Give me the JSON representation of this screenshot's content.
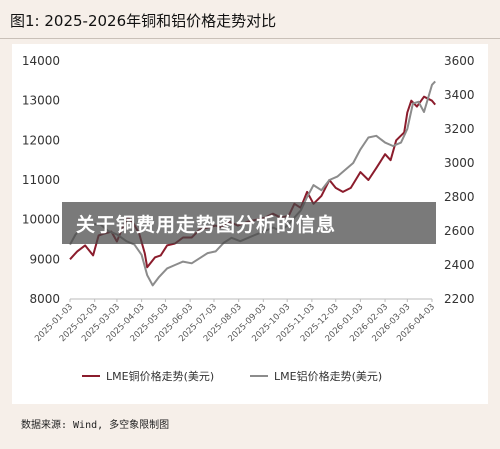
{
  "title": "图1: 2025-2026年铜和铝价格走势对比",
  "overlay_text": "关于铜费用走势图分析的信息",
  "source": "数据来源: Wind, 多空象限制图",
  "colors": {
    "copper": "#8b1c2c",
    "aluminium": "#8c8c8c",
    "background": "#f6efe9"
  },
  "chart_data": {
    "type": "line",
    "y_left": {
      "ticks": [
        8000,
        9000,
        10000,
        11000,
        12000,
        13000,
        14000
      ],
      "lim": [
        8000,
        14000
      ]
    },
    "y_right": {
      "ticks": [
        2200,
        2400,
        2600,
        2800,
        3000,
        3200,
        3400,
        3600
      ],
      "lim": [
        2200,
        3600
      ]
    },
    "x_ticks": [
      "2025-01-03",
      "2025-02-03",
      "2025-03-03",
      "2025-04-03",
      "2025-05-03",
      "2025-06-03",
      "2025-07-03",
      "2025-08-03",
      "2025-09-03",
      "2025-10-03",
      "2025-11-03",
      "2025-12-03",
      "2026-01-03",
      "2026-02-03",
      "2026-03-03",
      "2026-04-03"
    ],
    "grid": false,
    "legend_position": "bottom",
    "series": [
      {
        "name": "LME铜价格走势(美元)",
        "axis": "left",
        "color": "#8b1c2c",
        "x": [
          "2025-01-03",
          "2025-01-12",
          "2025-01-22",
          "2025-02-01",
          "2025-02-08",
          "2025-02-15",
          "2025-02-24",
          "2025-03-03",
          "2025-03-10",
          "2025-03-17",
          "2025-03-24",
          "2025-03-31",
          "2025-04-07",
          "2025-04-10",
          "2025-04-20",
          "2025-04-27",
          "2025-05-05",
          "2025-05-15",
          "2025-05-25",
          "2025-06-05",
          "2025-06-15",
          "2025-06-25",
          "2025-07-05",
          "2025-07-12",
          "2025-07-22",
          "2025-08-02",
          "2025-08-15",
          "2025-08-25",
          "2025-09-05",
          "2025-09-15",
          "2025-09-25",
          "2025-10-05",
          "2025-10-12",
          "2025-10-20",
          "2025-10-28",
          "2025-11-05",
          "2025-11-15",
          "2025-11-25",
          "2025-12-03",
          "2025-12-12",
          "2025-12-22",
          "2026-01-03",
          "2026-01-13",
          "2026-01-23",
          "2026-02-03",
          "2026-02-10",
          "2026-02-17",
          "2026-02-27",
          "2026-03-03",
          "2026-03-08",
          "2026-03-15",
          "2026-03-24",
          "2026-04-03",
          "2026-04-07"
        ],
        "values": [
          9000,
          9200,
          9350,
          9100,
          9600,
          9650,
          9700,
          9450,
          9800,
          10050,
          9900,
          9650,
          9150,
          8800,
          9050,
          9100,
          9350,
          9400,
          9550,
          9550,
          9750,
          9800,
          9850,
          9800,
          9950,
          9850,
          9950,
          10000,
          10050,
          10150,
          10050,
          10100,
          10400,
          10300,
          10700,
          10400,
          10600,
          11000,
          10800,
          10700,
          10800,
          11200,
          11000,
          11300,
          11650,
          11500,
          12000,
          12200,
          12700,
          13000,
          12850,
          13100,
          13000,
          12900
        ]
      },
      {
        "name": "LME铝价格走势(美元)",
        "axis": "right",
        "color": "#8c8c8c",
        "x": [
          "2025-01-03",
          "2025-01-10",
          "2025-01-20",
          "2025-02-01",
          "2025-02-10",
          "2025-02-20",
          "2025-03-03",
          "2025-03-15",
          "2025-03-25",
          "2025-04-03",
          "2025-04-10",
          "2025-04-17",
          "2025-04-25",
          "2025-05-05",
          "2025-05-15",
          "2025-05-25",
          "2025-06-05",
          "2025-06-15",
          "2025-06-25",
          "2025-07-05",
          "2025-07-15",
          "2025-07-25",
          "2025-08-05",
          "2025-08-15",
          "2025-08-25",
          "2025-09-05",
          "2025-09-15",
          "2025-09-25",
          "2025-10-05",
          "2025-10-12",
          "2025-10-20",
          "2025-10-28",
          "2025-11-05",
          "2025-11-15",
          "2025-11-25",
          "2025-12-05",
          "2025-12-15",
          "2025-12-25",
          "2026-01-03",
          "2026-01-13",
          "2026-01-23",
          "2026-02-03",
          "2026-02-13",
          "2026-02-23",
          "2026-03-03",
          "2026-03-10",
          "2026-03-17",
          "2026-03-24",
          "2026-04-03",
          "2026-04-07"
        ],
        "values": [
          2520,
          2580,
          2620,
          2640,
          2640,
          2600,
          2580,
          2540,
          2520,
          2460,
          2340,
          2280,
          2330,
          2380,
          2400,
          2420,
          2410,
          2440,
          2470,
          2480,
          2530,
          2560,
          2540,
          2560,
          2580,
          2600,
          2620,
          2600,
          2640,
          2680,
          2720,
          2800,
          2870,
          2840,
          2900,
          2920,
          2960,
          3000,
          3080,
          3150,
          3160,
          3120,
          3100,
          3120,
          3200,
          3350,
          3360,
          3300,
          3460,
          3480
        ]
      }
    ]
  }
}
